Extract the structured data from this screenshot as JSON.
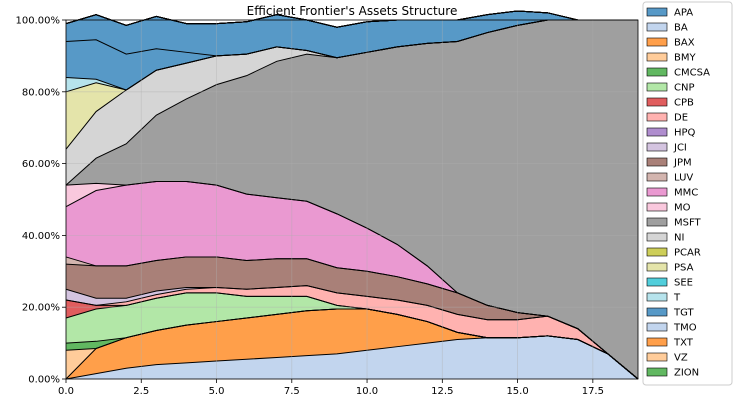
{
  "chart_data": {
    "type": "area",
    "stacked": true,
    "title": "Efficient Frontier's Assets Structure",
    "xlabel": "",
    "ylabel": "",
    "xlim": [
      0,
      19
    ],
    "ylim": [
      0,
      1
    ],
    "xticks": [
      0.0,
      2.5,
      5.0,
      7.5,
      10.0,
      12.5,
      15.0,
      17.5
    ],
    "xtick_labels": [
      "0.0",
      "2.5",
      "5.0",
      "7.5",
      "10.0",
      "12.5",
      "15.0",
      "17.5"
    ],
    "yticks": [
      0,
      0.2,
      0.4,
      0.6,
      0.8,
      1.0
    ],
    "ytick_labels": [
      "0.00%",
      "20.00%",
      "40.00%",
      "60.00%",
      "80.00%",
      "100.00%"
    ],
    "grid": true,
    "legend_position": "right-outside",
    "x": [
      0,
      1,
      2,
      3,
      4,
      5,
      6,
      7,
      8,
      9,
      10,
      11,
      12,
      13,
      14,
      15,
      16,
      17,
      18,
      19
    ],
    "series": [
      {
        "name": "APA",
        "color": "#1f77b4",
        "values": [
          0.1,
          0.11,
          0.1,
          0.06,
          0.03,
          0,
          0,
          0,
          0,
          0,
          0,
          0,
          0,
          0,
          0,
          0,
          0,
          0,
          0,
          0
        ]
      },
      {
        "name": "BA",
        "color": "#aec7e8",
        "values": [
          0,
          0,
          0,
          0,
          0,
          0,
          0,
          0,
          0,
          0,
          0,
          0,
          0,
          0,
          0,
          0,
          0,
          0,
          0,
          0
        ]
      },
      {
        "name": "BAX",
        "color": "#ff7f0e",
        "values": [
          0,
          0,
          0,
          0,
          0,
          0,
          0,
          0,
          0,
          0,
          0,
          0,
          0,
          0,
          0,
          0,
          0,
          0,
          0,
          0
        ]
      },
      {
        "name": "BMY",
        "color": "#ffbb78",
        "values": [
          0,
          0,
          0,
          0,
          0,
          0,
          0,
          0,
          0,
          0,
          0,
          0,
          0,
          0,
          0,
          0,
          0,
          0,
          0,
          0
        ]
      },
      {
        "name": "CMCSA",
        "color": "#2ca02c",
        "values": [
          0,
          0,
          0,
          0,
          0,
          0,
          0,
          0,
          0,
          0,
          0,
          0,
          0,
          0,
          0,
          0,
          0,
          0,
          0,
          0
        ]
      },
      {
        "name": "CNP",
        "color": "#98df8a",
        "values": [
          0.07,
          0.09,
          0.09,
          0.09,
          0.09,
          0.08,
          0.06,
          0.05,
          0.04,
          0.01,
          0,
          0,
          0,
          0,
          0,
          0,
          0,
          0,
          0,
          0
        ]
      },
      {
        "name": "CPB",
        "color": "#d62728",
        "values": [
          0.05,
          0.01,
          0,
          0,
          0,
          0,
          0,
          0,
          0,
          0,
          0,
          0,
          0,
          0,
          0,
          0,
          0,
          0,
          0,
          0
        ]
      },
      {
        "name": "DE",
        "color": "#ff9896",
        "values": [
          0,
          0,
          0.01,
          0.01,
          0.01,
          0.015,
          0.02,
          0.025,
          0.03,
          0.035,
          0.035,
          0.04,
          0.045,
          0.05,
          0.05,
          0.05,
          0.055,
          0.03,
          0,
          0
        ]
      },
      {
        "name": "HPQ",
        "color": "#9467bd",
        "values": [
          0,
          0,
          0,
          0,
          0,
          0,
          0,
          0,
          0,
          0,
          0,
          0,
          0,
          0,
          0,
          0,
          0,
          0,
          0,
          0
        ]
      },
      {
        "name": "JCI",
        "color": "#c5b0d5",
        "values": [
          0.03,
          0.02,
          0.01,
          0.01,
          0.005,
          0,
          0,
          0,
          0,
          0,
          0,
          0,
          0,
          0,
          0,
          0,
          0,
          0,
          0,
          0
        ]
      },
      {
        "name": "JPM",
        "color": "#8c564b",
        "values": [
          0.07,
          0.09,
          0.09,
          0.085,
          0.085,
          0.085,
          0.08,
          0.08,
          0.075,
          0.07,
          0.07,
          0.065,
          0.06,
          0.06,
          0.04,
          0.02,
          0,
          0,
          0,
          0
        ]
      },
      {
        "name": "LUV",
        "color": "#c49c94",
        "values": [
          0.02,
          0,
          0,
          0,
          0,
          0,
          0,
          0,
          0,
          0,
          0,
          0,
          0,
          0,
          0,
          0,
          0,
          0,
          0,
          0
        ]
      },
      {
        "name": "MMC",
        "color": "#e377c2",
        "values": [
          0.14,
          0.21,
          0.225,
          0.22,
          0.21,
          0.2,
          0.185,
          0.17,
          0.16,
          0.15,
          0.12,
          0.09,
          0.05,
          0,
          0,
          0,
          0,
          0,
          0,
          0
        ]
      },
      {
        "name": "MO",
        "color": "#f7b6d2",
        "values": [
          0.06,
          0.02,
          0,
          0,
          0,
          0,
          0,
          0,
          0,
          0,
          0,
          0,
          0,
          0,
          0,
          0,
          0,
          0,
          0,
          0
        ]
      },
      {
        "name": "MSFT",
        "color": "#7f7f7f",
        "values": [
          0,
          0.07,
          0.115,
          0.185,
          0.23,
          0.28,
          0.33,
          0.38,
          0.41,
          0.435,
          0.49,
          0.55,
          0.62,
          0.7,
          0.76,
          0.8,
          0.825,
          0.86,
          0.93,
          1.0
        ]
      },
      {
        "name": "NI",
        "color": "#c7c7c7",
        "values": [
          0.1,
          0.13,
          0.15,
          0.125,
          0.1,
          0.08,
          0.06,
          0.04,
          0.01,
          0,
          0,
          0,
          0,
          0,
          0,
          0,
          0,
          0,
          0,
          0
        ]
      },
      {
        "name": "PCAR",
        "color": "#bcbd22",
        "values": [
          0,
          0,
          0,
          0,
          0,
          0,
          0,
          0,
          0,
          0,
          0,
          0,
          0,
          0,
          0,
          0,
          0,
          0,
          0,
          0
        ]
      },
      {
        "name": "PSA",
        "color": "#dbdb8d",
        "values": [
          0.16,
          0.08,
          0,
          0,
          0,
          0,
          0,
          0,
          0,
          0,
          0,
          0,
          0,
          0,
          0,
          0,
          0,
          0,
          0,
          0
        ]
      },
      {
        "name": "SEE",
        "color": "#17becf",
        "values": [
          0,
          0,
          0,
          0,
          0,
          0,
          0,
          0,
          0,
          0,
          0,
          0,
          0,
          0,
          0,
          0,
          0,
          0,
          0,
          0
        ]
      },
      {
        "name": "T",
        "color": "#9edae5",
        "values": [
          0.04,
          0.01,
          0,
          0,
          0,
          0,
          0,
          0,
          0,
          0,
          0,
          0,
          0,
          0,
          0,
          0,
          0,
          0,
          0,
          0
        ]
      },
      {
        "name": "TGT",
        "color": "#1f77b4",
        "values": [
          0.05,
          0.07,
          0.08,
          0.09,
          0.08,
          0.09,
          0.09,
          0.09,
          0.085,
          0.085,
          0.085,
          0.075,
          0.065,
          0.06,
          0.05,
          0.04,
          0.02,
          0,
          0,
          0
        ]
      },
      {
        "name": "TMO",
        "color": "#aec7e8",
        "values": [
          0,
          0.015,
          0.03,
          0.04,
          0.045,
          0.05,
          0.055,
          0.06,
          0.065,
          0.07,
          0.08,
          0.09,
          0.1,
          0.11,
          0.115,
          0.115,
          0.12,
          0.11,
          0.07,
          0
        ]
      },
      {
        "name": "TXT",
        "color": "#ff7f0e",
        "values": [
          0,
          0.07,
          0.085,
          0.095,
          0.105,
          0.11,
          0.115,
          0.12,
          0.125,
          0.125,
          0.115,
          0.09,
          0.06,
          0.02,
          0,
          0,
          0,
          0,
          0,
          0
        ]
      },
      {
        "name": "VZ",
        "color": "#ffbb78",
        "values": [
          0.08,
          0,
          0,
          0,
          0,
          0,
          0,
          0,
          0,
          0,
          0,
          0,
          0,
          0,
          0,
          0,
          0,
          0,
          0,
          0
        ]
      },
      {
        "name": "ZION",
        "color": "#2ca02c",
        "values": [
          0.02,
          0.02,
          0,
          0,
          0,
          0,
          0,
          0,
          0,
          0,
          0,
          0,
          0,
          0,
          0,
          0,
          0,
          0,
          0,
          0
        ]
      }
    ],
    "stack_order_bottom_to_top": [
      "TMO",
      "TXT",
      "VZ",
      "ZION",
      "CNP",
      "CPB",
      "DE",
      "JCI",
      "JPM",
      "LUV",
      "MMC",
      "MO",
      "MSFT",
      "NI",
      "PSA",
      "T",
      "APA",
      "TGT",
      "BA",
      "BAX",
      "BMY",
      "CMCSA",
      "HPQ",
      "PCAR",
      "SEE"
    ]
  }
}
